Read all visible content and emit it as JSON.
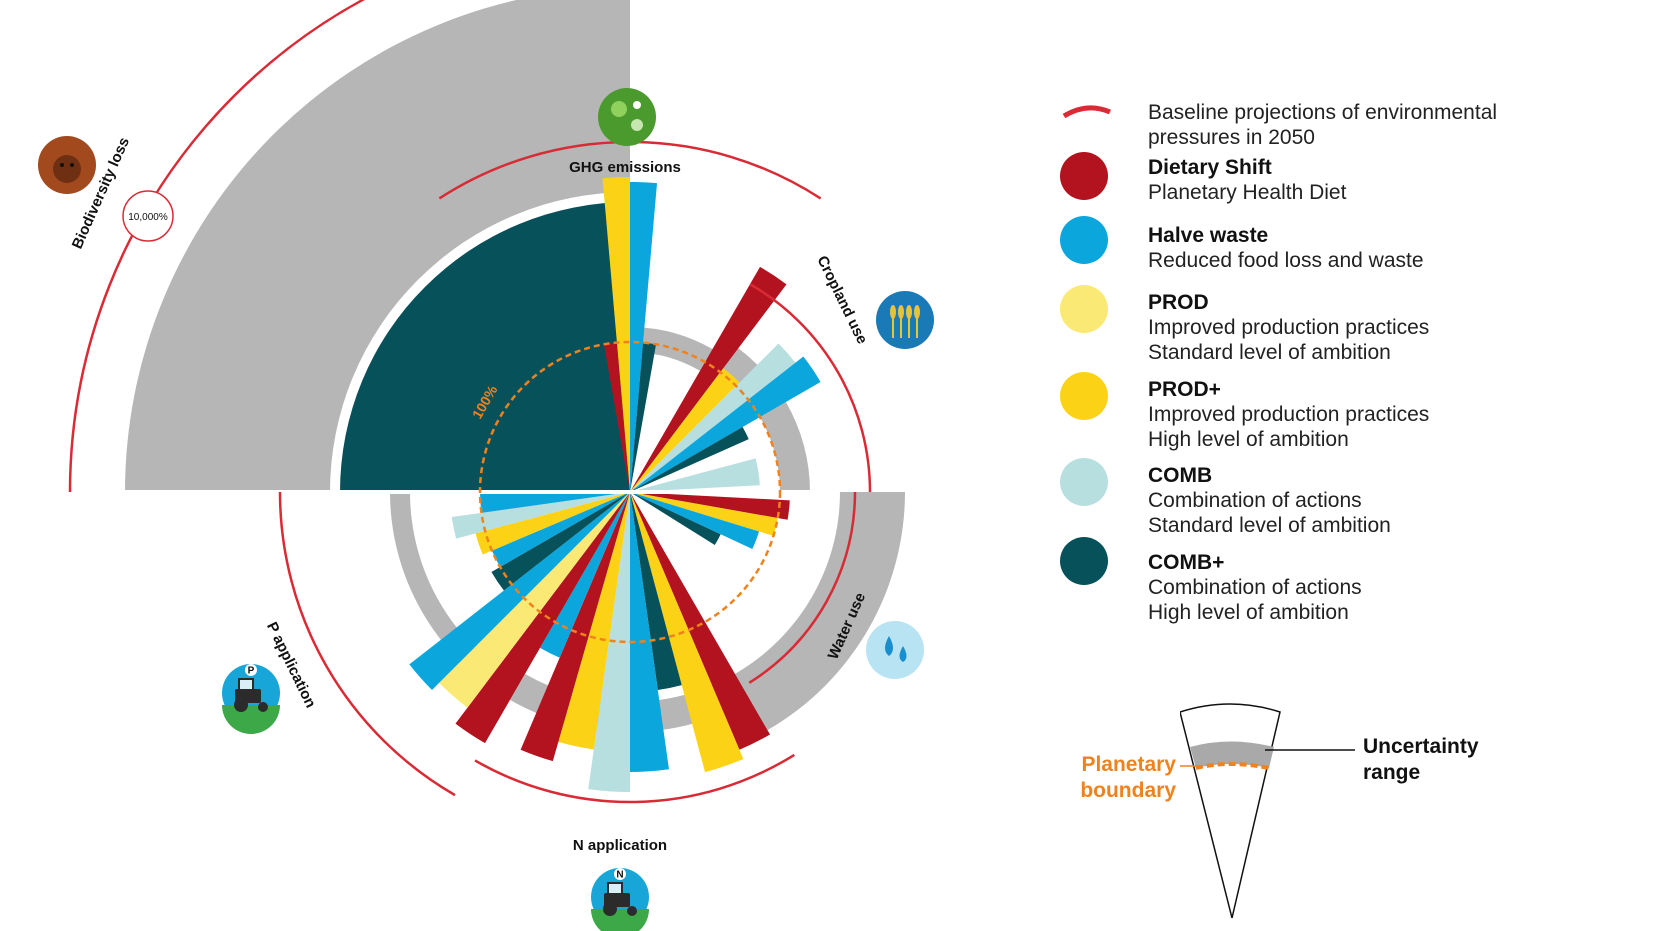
{
  "axes": [
    {
      "id": "biodiversity",
      "label": "Biodiversity loss",
      "icon": "orangutan-icon",
      "max_label": "10,000%"
    },
    {
      "id": "ghg",
      "label": "GHG emissions",
      "icon": "globe-icon"
    },
    {
      "id": "cropland",
      "label": "Cropland use",
      "icon": "wheat-icon"
    },
    {
      "id": "water",
      "label": "Water use",
      "icon": "water-drops-icon"
    },
    {
      "id": "nitrogen",
      "label": "N application",
      "icon": "tractor-n-icon",
      "icon_letter": "N"
    },
    {
      "id": "phosphorus",
      "label": "P application",
      "icon": "tractor-p-icon",
      "icon_letter": "P"
    }
  ],
  "boundary_label": "100%",
  "legend": {
    "baseline": {
      "text": "Baseline projections of environmental pressures in 2050",
      "line1": "Baseline projections of environmental",
      "line2": "pressures in 2050"
    },
    "items": [
      {
        "title": "Dietary Shift",
        "line1": "Planetary Health Diet",
        "line2": ""
      },
      {
        "title": "Halve waste",
        "line1": "Reduced food loss and waste",
        "line2": ""
      },
      {
        "title": "PROD",
        "line1": "Improved production practices",
        "line2": "Standard level of ambition"
      },
      {
        "title": "PROD+",
        "line1": "Improved production practices",
        "line2": "High level of ambition"
      },
      {
        "title": "COMB",
        "line1": "Combination of actions",
        "line2": "Standard level of ambition"
      },
      {
        "title": "COMB+",
        "line1": "Combination of actions",
        "line2": "High level of ambition"
      }
    ]
  },
  "key": {
    "planetary_boundary_line1": "Planetary",
    "planetary_boundary_line2": "boundary",
    "uncertainty_line1": "Uncertainty",
    "uncertainty_line2": "range"
  },
  "colors": {
    "baseline": "#d92b35",
    "dietary": "#b3121f",
    "waste": "#0aa6dc",
    "prod": "#fbe976",
    "prod_plus": "#fcd216",
    "comb": "#b7dfdf",
    "comb_plus": "#07515b",
    "uncertainty": "#a9a9a9",
    "boundary": "#f0821e"
  }
}
